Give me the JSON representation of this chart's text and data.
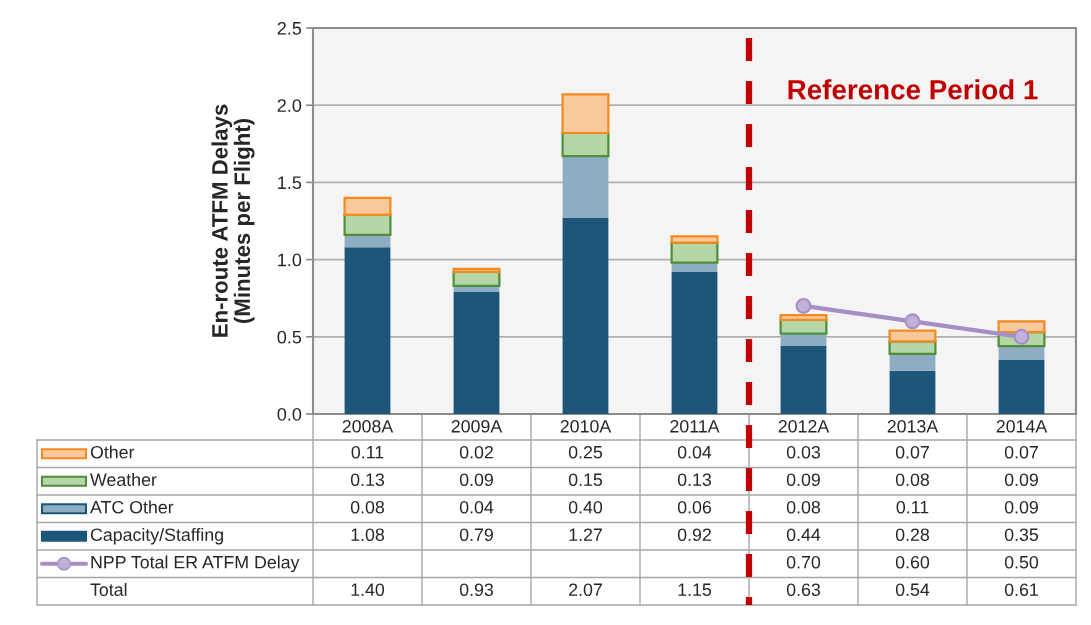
{
  "chart_data": {
    "type": "bar",
    "stacked": true,
    "ylabel": "En-route ATFM Delays\n(Minutes per Flight)",
    "categories": [
      "2008A",
      "2009A",
      "2010A",
      "2011A",
      "2012A",
      "2013A",
      "2014A"
    ],
    "series": [
      {
        "name": "Capacity/Staffing",
        "color": "#1e5679",
        "values": [
          1.08,
          0.79,
          1.27,
          0.92,
          0.44,
          0.28,
          0.35
        ],
        "value_labels": [
          "1.08",
          "0.79",
          "1.27",
          "0.92",
          "0.44",
          "0.28",
          "0.35"
        ]
      },
      {
        "name": "ATC Other",
        "color": "#8eadc2",
        "values": [
          0.08,
          0.04,
          0.4,
          0.06,
          0.08,
          0.11,
          0.09
        ],
        "value_labels": [
          "0.08",
          "0.04",
          "0.40",
          "0.06",
          "0.08",
          "0.11",
          "0.09"
        ]
      },
      {
        "name": "Weather",
        "color": "#b5d7a8",
        "values": [
          0.13,
          0.09,
          0.15,
          0.13,
          0.09,
          0.08,
          0.09
        ],
        "value_labels": [
          "0.13",
          "0.09",
          "0.15",
          "0.13",
          "0.09",
          "0.08",
          "0.09"
        ]
      },
      {
        "name": "Other",
        "color": "#f9c99b",
        "values": [
          0.11,
          0.02,
          0.25,
          0.04,
          0.03,
          0.07,
          0.07
        ],
        "value_labels": [
          "0.11",
          "0.02",
          "0.25",
          "0.04",
          "0.03",
          "0.07",
          "0.07"
        ]
      },
      {
        "name": "NPP Total ER ATFM Delay",
        "type": "line",
        "color": "#a68fc7",
        "values": [
          null,
          null,
          null,
          null,
          0.7,
          0.6,
          0.5
        ],
        "value_labels": [
          null,
          null,
          null,
          null,
          "0.70",
          "0.60",
          "0.50"
        ]
      }
    ],
    "ylim": [
      0,
      2.5
    ],
    "yticks": [
      {
        "value": 0,
        "label": "0.0"
      },
      0.5,
      {
        "value": 1,
        "label": "1.0"
      },
      1.5,
      {
        "value": 2,
        "label": "2.0"
      },
      2.5
    ],
    "grid": "y",
    "legend": "bottom left",
    "marker": "circle",
    "annotations": [
      "Reference Period 1",
      "Total",
      "1.40",
      "0.93",
      "2.07",
      "1.15",
      "0.63",
      "0.54",
      "0.61"
    ]
  }
}
